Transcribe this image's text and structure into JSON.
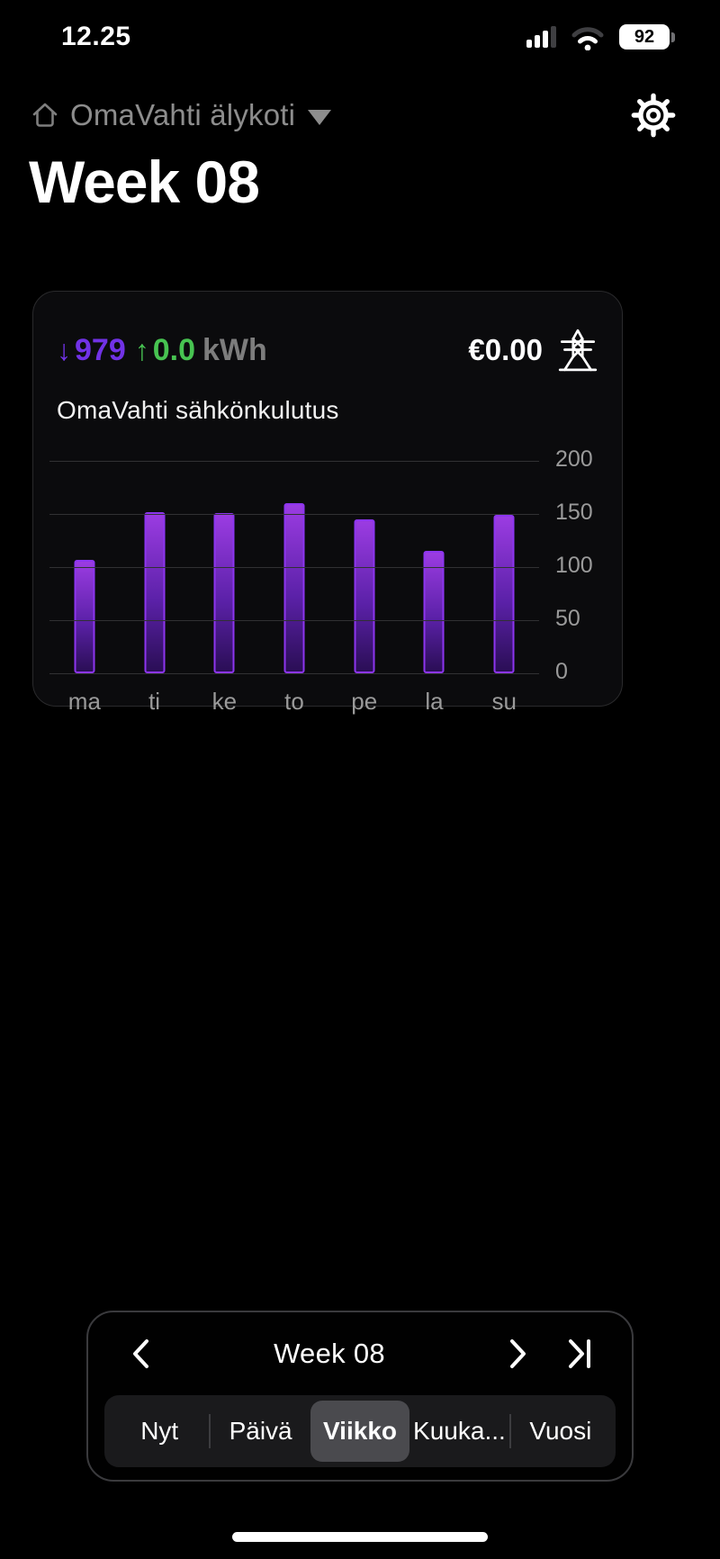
{
  "status_bar": {
    "time": "12.25",
    "battery_percent": "92"
  },
  "header": {
    "app_label": "OmaVahti älykoti"
  },
  "page_title": "Week 08",
  "card": {
    "down_arrow": "↓",
    "consumption_total": "979",
    "up_arrow": "↑",
    "production_total": "0.0",
    "unit": "kWh",
    "cost": "€0.00",
    "subtitle": "OmaVahti sähkönkulutus"
  },
  "chart_data": {
    "type": "bar",
    "title": "OmaVahti sähkönkulutus",
    "categories": [
      "ma",
      "ti",
      "ke",
      "to",
      "pe",
      "la",
      "su"
    ],
    "values": [
      107,
      152,
      151,
      160,
      145,
      115,
      149
    ],
    "xlabel": "",
    "ylabel": "",
    "ylim": [
      0,
      200
    ],
    "yticks": [
      200,
      150,
      100,
      50,
      0
    ],
    "grid": true,
    "legend": "none",
    "bar_color_top": "#9b3ce2",
    "bar_color_bottom": "#2a0e55",
    "bar_border": "#8d35ef"
  },
  "navigator": {
    "period_label": "Week 08",
    "tabs": [
      {
        "label": "Nyt",
        "selected": false
      },
      {
        "label": "Päivä",
        "selected": false
      },
      {
        "label": "Viikko",
        "selected": true
      },
      {
        "label": "Kuuka...",
        "selected": false
      },
      {
        "label": "Vuosi",
        "selected": false
      }
    ]
  },
  "colors": {
    "accent_purple": "#7132e6",
    "accent_green": "#47c351",
    "muted_gray": "#7d7d7d",
    "background": "#000000",
    "card_background": "#0b0b0d"
  },
  "icons": {
    "home": "house-outline",
    "dropdown": "caret-down",
    "settings": "gear",
    "energy": "transmission-tower",
    "prev": "chevron-left",
    "next": "chevron-right",
    "last": "chevron-last",
    "signal": "cellular-bars",
    "wifi": "wifi",
    "battery": "battery-level"
  }
}
